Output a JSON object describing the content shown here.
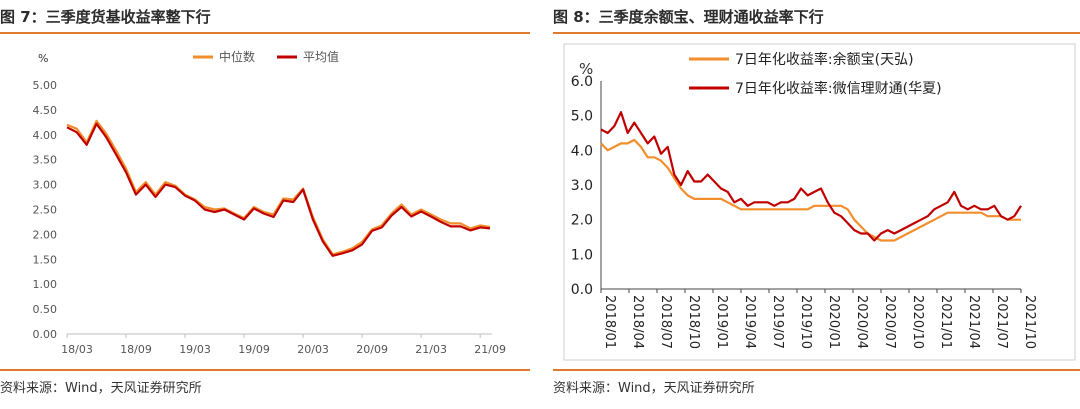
{
  "left": {
    "title": "图 7：三季度货基收益率整下行",
    "source": "资料来源：Wind，天风证券研究所",
    "chart_data": {
      "type": "line",
      "unit_label": "%",
      "ylim": [
        0,
        5
      ],
      "yticks": [
        "0.00",
        "0.50",
        "1.00",
        "1.50",
        "2.00",
        "2.50",
        "3.00",
        "3.50",
        "4.00",
        "4.50",
        "5.00"
      ],
      "x_tick_labels": [
        "18/03",
        "18/09",
        "19/03",
        "19/09",
        "20/03",
        "20/09",
        "21/03",
        "21/09"
      ],
      "x_tick_index": [
        0,
        6,
        12,
        18,
        24,
        30,
        36,
        42
      ],
      "series": [
        {
          "name": "中位数",
          "color": "#f28e2b",
          "values": [
            4.2,
            4.12,
            3.85,
            4.28,
            4.02,
            3.68,
            3.32,
            2.85,
            3.05,
            2.8,
            3.05,
            2.98,
            2.8,
            2.7,
            2.55,
            2.5,
            2.52,
            2.42,
            2.33,
            2.55,
            2.45,
            2.4,
            2.72,
            2.7,
            2.92,
            2.35,
            1.9,
            1.6,
            1.65,
            1.72,
            1.85,
            2.1,
            2.18,
            2.42,
            2.6,
            2.4,
            2.5,
            2.4,
            2.3,
            2.22,
            2.22,
            2.12,
            2.18,
            2.15
          ]
        },
        {
          "name": "平均值",
          "color": "#c00000",
          "values": [
            4.15,
            4.05,
            3.8,
            4.22,
            3.95,
            3.6,
            3.25,
            2.8,
            3.0,
            2.75,
            3.0,
            2.95,
            2.78,
            2.68,
            2.5,
            2.45,
            2.5,
            2.4,
            2.3,
            2.52,
            2.42,
            2.35,
            2.68,
            2.65,
            2.9,
            2.3,
            1.86,
            1.57,
            1.62,
            1.68,
            1.8,
            2.07,
            2.14,
            2.38,
            2.55,
            2.36,
            2.46,
            2.36,
            2.25,
            2.16,
            2.16,
            2.08,
            2.14,
            2.12
          ]
        }
      ]
    }
  },
  "right": {
    "title": "图 8：三季度余额宝、理财通收益率下行",
    "source": "资料来源：Wind，天风证券研究所",
    "chart_data": {
      "type": "line",
      "unit_label": "%",
      "ylim": [
        0,
        6
      ],
      "yticks": [
        "0.0",
        "1.0",
        "2.0",
        "3.0",
        "4.0",
        "5.0",
        "6.0"
      ],
      "x_tick_labels": [
        "2018/01",
        "2018/04",
        "2018/07",
        "2018/10",
        "2019/01",
        "2019/04",
        "2019/07",
        "2019/10",
        "2020/01",
        "2020/04",
        "2020/07",
        "2020/10",
        "2021/01",
        "2021/04",
        "2021/07",
        "2021/10"
      ],
      "series": [
        {
          "name": "7日年化收益率:余额宝(天弘)",
          "color": "#f28e2b",
          "values": [
            4.2,
            4.0,
            4.1,
            4.2,
            4.2,
            4.3,
            4.1,
            3.8,
            3.8,
            3.7,
            3.5,
            3.2,
            2.9,
            2.7,
            2.6,
            2.6,
            2.6,
            2.6,
            2.6,
            2.5,
            2.4,
            2.3,
            2.3,
            2.3,
            2.3,
            2.3,
            2.3,
            2.3,
            2.3,
            2.3,
            2.3,
            2.3,
            2.4,
            2.4,
            2.4,
            2.4,
            2.4,
            2.3,
            2.0,
            1.8,
            1.6,
            1.5,
            1.4,
            1.4,
            1.4,
            1.5,
            1.6,
            1.7,
            1.8,
            1.9,
            2.0,
            2.1,
            2.2,
            2.2,
            2.2,
            2.2,
            2.2,
            2.2,
            2.1,
            2.1,
            2.1,
            2.0,
            2.0,
            2.0
          ]
        },
        {
          "name": "7日年化收益率:微信理财通(华夏)",
          "color": "#c00000",
          "values": [
            4.6,
            4.5,
            4.7,
            5.1,
            4.5,
            4.8,
            4.5,
            4.2,
            4.4,
            3.9,
            4.1,
            3.3,
            3.0,
            3.4,
            3.1,
            3.1,
            3.3,
            3.1,
            2.9,
            2.8,
            2.5,
            2.6,
            2.4,
            2.5,
            2.5,
            2.5,
            2.4,
            2.5,
            2.5,
            2.6,
            2.9,
            2.7,
            2.8,
            2.9,
            2.5,
            2.2,
            2.1,
            1.9,
            1.7,
            1.6,
            1.6,
            1.4,
            1.6,
            1.7,
            1.6,
            1.7,
            1.8,
            1.9,
            2.0,
            2.1,
            2.3,
            2.4,
            2.5,
            2.8,
            2.4,
            2.3,
            2.4,
            2.3,
            2.3,
            2.4,
            2.1,
            2.0,
            2.1,
            2.4
          ]
        }
      ]
    }
  }
}
